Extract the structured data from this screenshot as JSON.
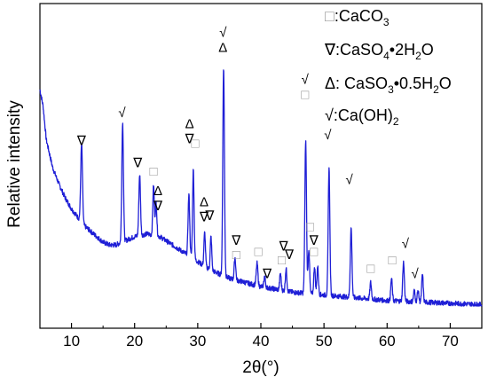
{
  "chart_data": {
    "type": "line",
    "xlabel": "2θ(°)",
    "ylabel": "Relative intensity",
    "xlim": [
      5,
      75
    ],
    "xticks": [
      10,
      20,
      30,
      40,
      50,
      60,
      70
    ],
    "y_ticks_shown": false,
    "grid": false,
    "legend_position": "top-right",
    "series_color": "#1f1fd6",
    "legend": [
      {
        "symbol": "□",
        "label": ":CaCO",
        "sub": "3",
        "rest": ""
      },
      {
        "symbol": "∇",
        "label": ":CaSO",
        "sub": "4",
        "rest": "•2H",
        "sub2": "2",
        "rest2": "O"
      },
      {
        "symbol": "Δ",
        "label": ": CaSO",
        "sub": "3",
        "rest": "•0.5H",
        "sub2": "2",
        "rest2": "O"
      },
      {
        "symbol": "√",
        "label": ":Ca(OH)",
        "sub": "2",
        "rest": ""
      }
    ],
    "baseline": [
      [
        5,
        0.78
      ],
      [
        5.5,
        0.72
      ],
      [
        6,
        0.6
      ],
      [
        7,
        0.5
      ],
      [
        8,
        0.44
      ],
      [
        9,
        0.39
      ],
      [
        10,
        0.35
      ],
      [
        11,
        0.32
      ],
      [
        12,
        0.29
      ],
      [
        13,
        0.27
      ],
      [
        14,
        0.25
      ],
      [
        15,
        0.23
      ],
      [
        16,
        0.22
      ],
      [
        17,
        0.22
      ],
      [
        18,
        0.23
      ],
      [
        19,
        0.24
      ],
      [
        20,
        0.25
      ],
      [
        22,
        0.26
      ],
      [
        24,
        0.25
      ],
      [
        26,
        0.22
      ],
      [
        28,
        0.19
      ],
      [
        30,
        0.16
      ],
      [
        32,
        0.13
      ],
      [
        35,
        0.1
      ],
      [
        40,
        0.07
      ],
      [
        45,
        0.05
      ],
      [
        50,
        0.04
      ],
      [
        55,
        0.03
      ],
      [
        60,
        0.02
      ],
      [
        65,
        0.015
      ],
      [
        70,
        0.01
      ],
      [
        75,
        0.005
      ]
    ],
    "peaks": [
      {
        "x": 11.6,
        "h": 0.28,
        "w": 0.14
      },
      {
        "x": 18.1,
        "h": 0.43,
        "w": 0.13
      },
      {
        "x": 20.8,
        "h": 0.22,
        "w": 0.13
      },
      {
        "x": 23.0,
        "h": 0.18,
        "w": 0.12
      },
      {
        "x": 23.4,
        "h": 0.12,
        "w": 0.12
      },
      {
        "x": 28.6,
        "h": 0.22,
        "w": 0.13
      },
      {
        "x": 29.3,
        "h": 0.32,
        "w": 0.12
      },
      {
        "x": 31.1,
        "h": 0.12,
        "w": 0.12
      },
      {
        "x": 32.1,
        "h": 0.12,
        "w": 0.12
      },
      {
        "x": 34.1,
        "h": 0.75,
        "w": 0.13
      },
      {
        "x": 35.9,
        "h": 0.08,
        "w": 0.12
      },
      {
        "x": 39.4,
        "h": 0.08,
        "w": 0.13
      },
      {
        "x": 40.6,
        "h": 0.04,
        "w": 0.12
      },
      {
        "x": 43.1,
        "h": 0.06,
        "w": 0.12
      },
      {
        "x": 44.0,
        "h": 0.08,
        "w": 0.12
      },
      {
        "x": 47.1,
        "h": 0.55,
        "w": 0.13
      },
      {
        "x": 47.6,
        "h": 0.16,
        "w": 0.12
      },
      {
        "x": 48.5,
        "h": 0.1,
        "w": 0.12
      },
      {
        "x": 49.0,
        "h": 0.1,
        "w": 0.12
      },
      {
        "x": 50.8,
        "h": 0.46,
        "w": 0.13
      },
      {
        "x": 54.3,
        "h": 0.25,
        "w": 0.13
      },
      {
        "x": 57.4,
        "h": 0.06,
        "w": 0.12
      },
      {
        "x": 60.7,
        "h": 0.08,
        "w": 0.12
      },
      {
        "x": 62.6,
        "h": 0.14,
        "w": 0.13
      },
      {
        "x": 64.3,
        "h": 0.04,
        "w": 0.12
      },
      {
        "x": 64.9,
        "h": 0.04,
        "w": 0.12
      },
      {
        "x": 65.6,
        "h": 0.1,
        "w": 0.12
      }
    ],
    "annotations": [
      {
        "x": 11.6,
        "y": 0.58,
        "symbols": [
          "∇"
        ]
      },
      {
        "x": 18.0,
        "y": 0.68,
        "symbols": [
          "√"
        ]
      },
      {
        "x": 20.5,
        "y": 0.5,
        "symbols": [
          "∇"
        ]
      },
      {
        "x": 23.0,
        "y": 0.47,
        "symbols": [
          "□"
        ]
      },
      {
        "x": 23.7,
        "y": 0.4,
        "symbols": [
          "Δ",
          "∇"
        ]
      },
      {
        "x": 28.7,
        "y": 0.64,
        "symbols": [
          "Δ",
          "∇"
        ]
      },
      {
        "x": 29.6,
        "y": 0.57,
        "symbols": [
          "□"
        ]
      },
      {
        "x": 31.0,
        "y": 0.36,
        "symbols": [
          "Δ",
          "∇"
        ]
      },
      {
        "x": 31.9,
        "y": 0.31,
        "symbols": [
          "∇"
        ]
      },
      {
        "x": 34.0,
        "y": 0.97,
        "symbols": [
          "√",
          "Δ"
        ]
      },
      {
        "x": 36.1,
        "y": 0.22,
        "symbols": [
          "∇"
        ]
      },
      {
        "x": 36.1,
        "y": 0.17,
        "symbols": [
          "□"
        ]
      },
      {
        "x": 39.6,
        "y": 0.18,
        "symbols": [
          "□"
        ]
      },
      {
        "x": 41.0,
        "y": 0.1,
        "symbols": [
          "∇"
        ]
      },
      {
        "x": 43.3,
        "y": 0.15,
        "symbols": [
          "□"
        ]
      },
      {
        "x": 43.6,
        "y": 0.2,
        "symbols": [
          "∇"
        ]
      },
      {
        "x": 44.5,
        "y": 0.17,
        "symbols": [
          "∇"
        ]
      },
      {
        "x": 47.0,
        "y": 0.8,
        "symbols": [
          "√",
          "□"
        ]
      },
      {
        "x": 47.8,
        "y": 0.27,
        "symbols": [
          "□"
        ]
      },
      {
        "x": 48.4,
        "y": 0.22,
        "symbols": [
          "∇"
        ]
      },
      {
        "x": 48.4,
        "y": 0.18,
        "symbols": [
          "□"
        ]
      },
      {
        "x": 50.6,
        "y": 0.6,
        "symbols": [
          "√"
        ]
      },
      {
        "x": 54.0,
        "y": 0.44,
        "symbols": [
          "√"
        ]
      },
      {
        "x": 57.4,
        "y": 0.12,
        "symbols": [
          "□"
        ]
      },
      {
        "x": 60.8,
        "y": 0.15,
        "symbols": [
          "□"
        ]
      },
      {
        "x": 62.9,
        "y": 0.21,
        "symbols": [
          "√"
        ]
      },
      {
        "x": 64.4,
        "y": 0.1,
        "symbols": [
          "√"
        ]
      }
    ]
  }
}
